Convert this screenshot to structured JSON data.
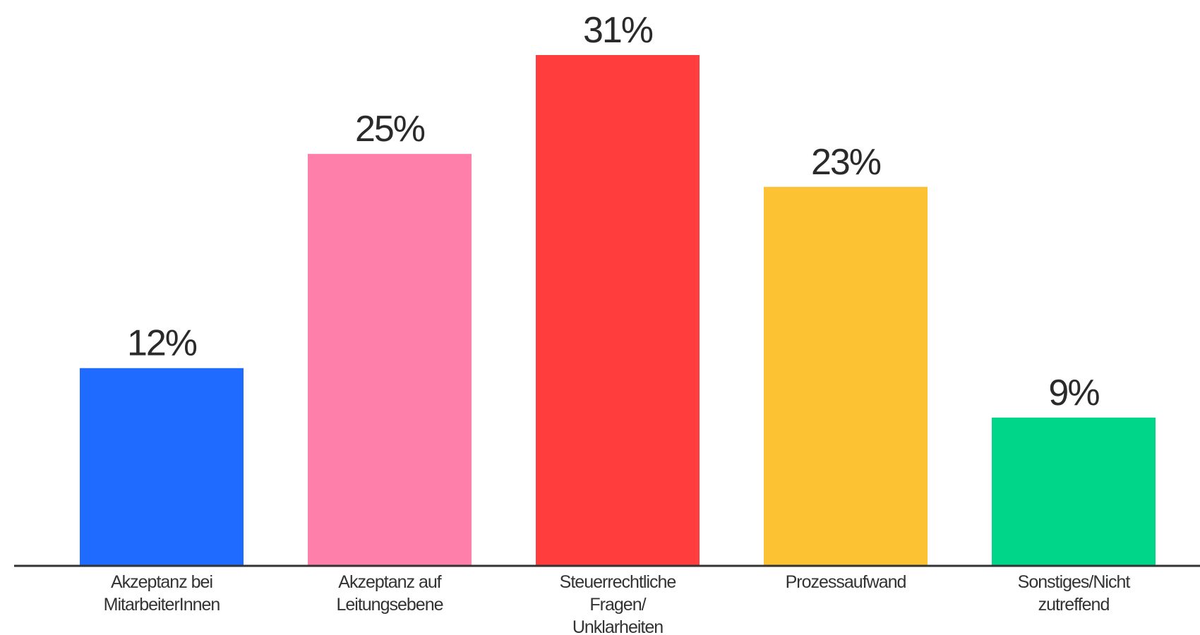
{
  "chart_data": {
    "type": "bar",
    "categories": [
      [
        "Akzeptanz bei",
        "MitarbeiterInnen"
      ],
      [
        "Akzeptanz auf",
        "Leitungsebene"
      ],
      [
        "Steuerrechtliche",
        "Fragen/",
        "Unklarheiten"
      ],
      [
        "Prozessaufwand"
      ],
      [
        "Sonstiges/Nicht",
        "zutreffend"
      ]
    ],
    "values": [
      12,
      25,
      31,
      23,
      9
    ],
    "value_labels": [
      "12%",
      "25%",
      "31%",
      "23%",
      "9%"
    ],
    "colors": [
      "#1f6bff",
      "#ff7fab",
      "#ff3d3d",
      "#fdc233",
      "#00d68a"
    ],
    "axis_color": "#333333",
    "title": "",
    "xlabel": "",
    "ylabel": "",
    "ylim": [
      0,
      31
    ],
    "grid": false,
    "legend": "none"
  }
}
